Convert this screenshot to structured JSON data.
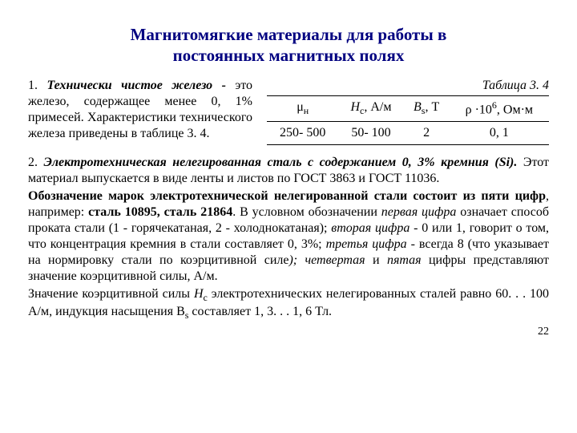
{
  "title_line1": "Магнитомягкие материалы  для работы в",
  "title_line2": "постоянных магнитных полях",
  "section1": {
    "lead": "1. ",
    "lead_italic": "Технически чистое железо -",
    "rest": " это железо, содержащее менее 0, 1% примесей. Характеристики технического железа приведены в таблице 3. 4."
  },
  "table": {
    "caption": "Таблица 3. 4",
    "headers": {
      "h1_pre": "μ",
      "h1_sub": "н",
      "h2_pre": "Н",
      "h2_sub": "с",
      "h2_unit": ", А/м",
      "h3_pre": "В",
      "h3_sub": "s",
      "h3_unit": ", Т",
      "h4_pre": "ρ ·10",
      "h4_sup": "6",
      "h4_unit": ", Ом·м"
    },
    "row": {
      "c1": "250- 500",
      "c2": "50- 100",
      "c3": "2",
      "c4": "0, 1"
    }
  },
  "body": {
    "p1_lead": "2. ",
    "p1_bi1": "Электротехническая нелегированная сталь с содержанием 0, 3% кремния (Si).",
    "p1_rest": " Этот материал выпускается в виде ленты и листов по ГОСТ 3863 и ГОСТ 11036.",
    "p2_a": "Обозначение марок электротехнической нелегированной стали состоит из пяти цифр",
    "p2_b": ", например: ",
    "p2_c": "сталь 10895, сталь 21864",
    "p2_d": ". В условном обозначении ",
    "p2_e": "первая цифра",
    "p2_f": " означает способ проката стали (1 - горячекатаная, 2 - холоднокатаная); ",
    "p2_g": "вторая цифра",
    "p2_h": " - 0 или 1, говорит о том, что концентрация кремния в стали составляет 0, 3%; ",
    "p2_i": "третья цифра",
    "p2_j": " - всегда 8 (что указывает на нормировку стали по коэрцитивной силе",
    "p2_k": "); четвертая",
    "p2_l": " и ",
    "p2_m": "пятая",
    "p2_n": " цифры представляют значение коэрцитивной силы, А/м.",
    "p3_a": "Значение коэрцитивной силы ",
    "p3_b": "Н",
    "p3_b_sub": "с",
    "p3_c": " электротехнических нелегированных сталей равно 60. . . 100 А/м, индукция насыщения В",
    "p3_c_sub": "s",
    "p3_d": "  составляет 1, 3. . . 1, 6 Тл."
  },
  "page_number": "22"
}
